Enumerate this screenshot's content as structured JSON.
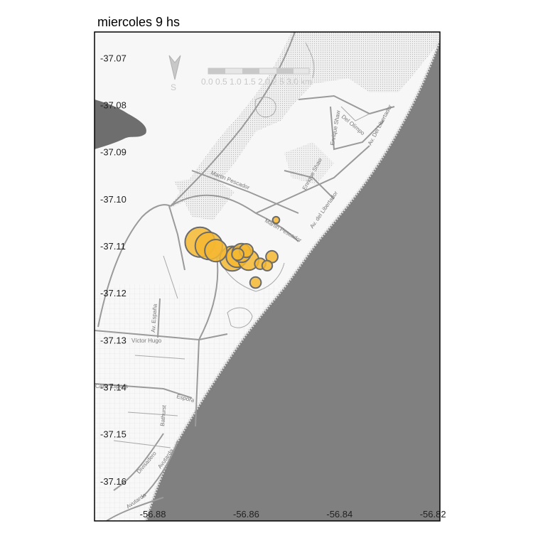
{
  "title": "miercoles 9 hs",
  "map": {
    "lat_ticks": [
      "-37.07",
      "-37.08",
      "-37.09",
      "-37.10",
      "-37.11",
      "-37.12",
      "-37.13",
      "-37.14",
      "-37.15",
      "-37.16"
    ],
    "lon_ticks": [
      "-56.88",
      "-56.86",
      "-56.84",
      "-56.82"
    ],
    "north_arrow_label": "S",
    "scale_label": "0.0 0.5 1.0 1.5 2.0 2.5 3.0 km",
    "streets": [
      "Martin Pescador",
      "Martin Pescador",
      "Enrique Shaw",
      "Enrique Shaw",
      "Del Olimpo",
      "Av. Del Libertador",
      "Av. del Libertador",
      "Av. España",
      "Víctor Hugo",
      "Calle Espora",
      "Espora",
      "Bathurst",
      "Divisadero",
      "Avutarda",
      "Avutarda"
    ],
    "colors": {
      "sea": "#808080",
      "lake": "#6e6e6e",
      "land": "#f7f7f7",
      "green": "#dcdcdc",
      "road": "#9a9a9a",
      "marker_fill": "#f4b731",
      "marker_stroke": "#6b6b6b"
    }
  },
  "chart_data": {
    "type": "scatter",
    "title": "miercoles 9 hs",
    "xlim": [
      -56.8925,
      -56.8185
    ],
    "ylim": [
      -37.1685,
      -37.0645
    ],
    "points": [
      {
        "lon": -56.8699,
        "lat": -37.1092,
        "size": 3.0
      },
      {
        "lon": -56.868,
        "lat": -37.11,
        "size": 2.7
      },
      {
        "lon": -56.8665,
        "lat": -37.111,
        "size": 2.1
      },
      {
        "lon": -56.863,
        "lat": -37.1127,
        "size": 2.4
      },
      {
        "lon": -56.862,
        "lat": -37.1123,
        "size": 2.0
      },
      {
        "lon": -56.861,
        "lat": -37.1115,
        "size": 1.7
      },
      {
        "lon": -56.8595,
        "lat": -37.113,
        "size": 1.9
      },
      {
        "lon": -56.86,
        "lat": -37.111,
        "size": 1.1
      },
      {
        "lon": -56.8618,
        "lat": -37.1118,
        "size": 0.9
      },
      {
        "lon": -56.857,
        "lat": -37.1138,
        "size": 0.8
      },
      {
        "lon": -56.8545,
        "lat": -37.1123,
        "size": 0.9
      },
      {
        "lon": -56.8555,
        "lat": -37.1142,
        "size": 0.7
      },
      {
        "lon": -56.858,
        "lat": -37.1178,
        "size": 0.8
      },
      {
        "lon": -56.8536,
        "lat": -37.1045,
        "size": 0.3
      }
    ]
  }
}
